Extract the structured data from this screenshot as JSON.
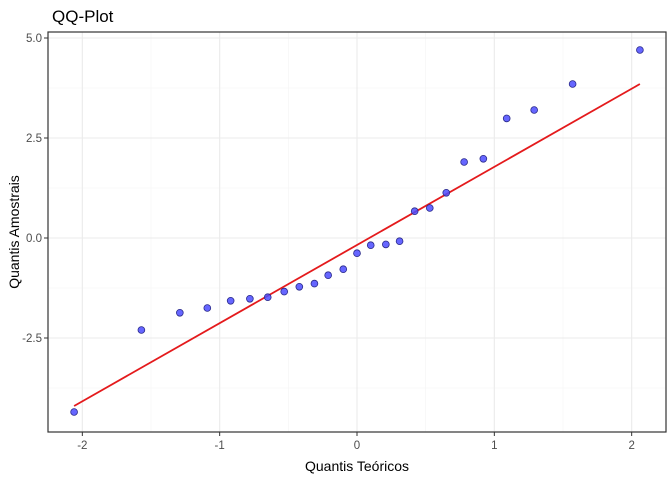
{
  "chart_data": {
    "type": "scatter",
    "title": "QQ-Plot",
    "xlabel": "Quantis Teóricos",
    "ylabel": "Quantis Amostrais",
    "xlim": [
      -2.25,
      2.25
    ],
    "ylim": [
      -4.85,
      5.15
    ],
    "x_ticks": [
      -2,
      -1,
      0,
      1,
      2
    ],
    "x_tick_labels": [
      "-2",
      "-1",
      "0",
      "1",
      "2"
    ],
    "y_ticks": [
      -2.5,
      0.0,
      2.5,
      5.0
    ],
    "y_tick_labels": [
      "-2.5",
      "0.0",
      "2.5",
      "5.0"
    ],
    "grid": true,
    "legend": "none",
    "series": [
      {
        "kind": "points",
        "color": "#4b4bff",
        "edge_color": "#2a2a8a",
        "points": [
          [
            -2.06,
            -4.35
          ],
          [
            -1.57,
            -2.3
          ],
          [
            -1.29,
            -1.87
          ],
          [
            -1.09,
            -1.75
          ],
          [
            -0.92,
            -1.57
          ],
          [
            -0.78,
            -1.52
          ],
          [
            -0.65,
            -1.48
          ],
          [
            -0.53,
            -1.34
          ],
          [
            -0.42,
            -1.22
          ],
          [
            -0.31,
            -1.14
          ],
          [
            -0.21,
            -0.93
          ],
          [
            -0.1,
            -0.78
          ],
          [
            0.0,
            -0.38
          ],
          [
            0.1,
            -0.18
          ],
          [
            0.21,
            -0.16
          ],
          [
            0.31,
            -0.08
          ],
          [
            0.42,
            0.67
          ],
          [
            0.53,
            0.75
          ],
          [
            0.65,
            1.13
          ],
          [
            0.78,
            1.9
          ],
          [
            0.92,
            1.98
          ],
          [
            1.09,
            2.99
          ],
          [
            1.29,
            3.2
          ],
          [
            1.57,
            3.85
          ],
          [
            2.06,
            4.7
          ]
        ]
      },
      {
        "kind": "line",
        "color": "#e41a1c",
        "points": [
          [
            -2.06,
            -4.2
          ],
          [
            2.06,
            3.85
          ]
        ]
      }
    ]
  }
}
